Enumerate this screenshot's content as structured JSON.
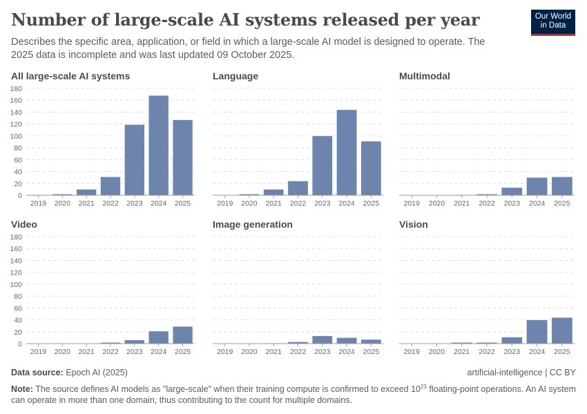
{
  "title": "Number of large-scale AI systems released per year",
  "subtitle": "Describes the specific area, application, or field in which a large-scale AI model is designed to operate. The 2025 data is incomplete and was last updated 09 October 2025.",
  "logo": "Our World in Data",
  "footer": {
    "source_label": "Data source:",
    "source": "Epoch AI (2025)",
    "license": "artificial-intelligence | CC BY",
    "note_label": "Note:",
    "note_pre": "The source defines AI models as \"large-scale\" when their training compute is confirmed to exceed 10",
    "note_sup": "23",
    "note_post": " floating-point operations. An AI system can operate in more than one domain, thus contributing to the count for multiple domains."
  },
  "colors": {
    "bar": "#6d85ad",
    "grid": "#dddddd",
    "axis": "#999999"
  },
  "chart_data": [
    {
      "type": "bar",
      "title": "All large-scale AI systems",
      "categories": [
        "2019",
        "2020",
        "2021",
        "2022",
        "2023",
        "2024",
        "2025"
      ],
      "values": [
        1,
        2,
        10,
        31,
        119,
        168,
        127
      ],
      "ylim": [
        0,
        180
      ],
      "yticks": [
        0,
        20,
        40,
        60,
        80,
        100,
        120,
        140,
        160,
        180
      ],
      "grid": true
    },
    {
      "type": "bar",
      "title": "Language",
      "categories": [
        "2019",
        "2020",
        "2021",
        "2022",
        "2023",
        "2024",
        "2025"
      ],
      "values": [
        0,
        2,
        10,
        24,
        100,
        144,
        91
      ],
      "ylim": [
        0,
        180
      ],
      "grid": true
    },
    {
      "type": "bar",
      "title": "Multimodal",
      "categories": [
        "2019",
        "2020",
        "2021",
        "2022",
        "2023",
        "2024",
        "2025"
      ],
      "values": [
        0,
        0,
        1,
        2,
        13,
        30,
        31
      ],
      "ylim": [
        0,
        180
      ],
      "grid": true
    },
    {
      "type": "bar",
      "title": "Video",
      "categories": [
        "2019",
        "2020",
        "2021",
        "2022",
        "2023",
        "2024",
        "2025"
      ],
      "values": [
        0,
        0,
        0,
        2,
        6,
        21,
        29
      ],
      "ylim": [
        0,
        180
      ],
      "yticks": [
        0,
        20,
        40,
        60,
        80,
        100,
        120,
        140,
        160,
        180
      ],
      "grid": true
    },
    {
      "type": "bar",
      "title": "Image generation",
      "categories": [
        "2019",
        "2020",
        "2021",
        "2022",
        "2023",
        "2024",
        "2025"
      ],
      "values": [
        0,
        0,
        1,
        3,
        13,
        10,
        7
      ],
      "ylim": [
        0,
        180
      ],
      "grid": true
    },
    {
      "type": "bar",
      "title": "Vision",
      "categories": [
        "2019",
        "2020",
        "2021",
        "2022",
        "2023",
        "2024",
        "2025"
      ],
      "values": [
        0,
        0,
        2,
        2,
        11,
        40,
        44
      ],
      "ylim": [
        0,
        180
      ],
      "grid": true
    }
  ]
}
